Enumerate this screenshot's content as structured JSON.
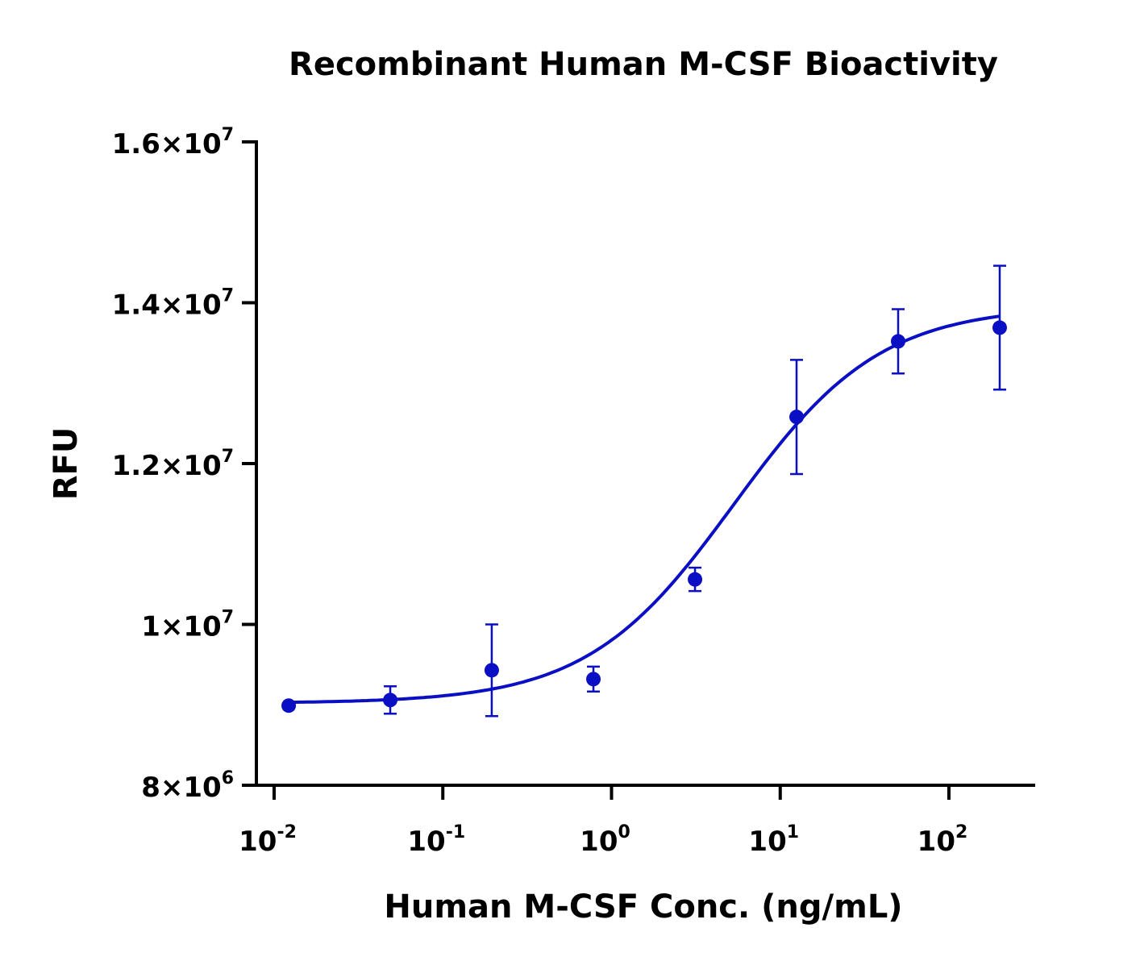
{
  "chart_data": {
    "type": "scatter",
    "title": "Recombinant Human M-CSF Bioactivity",
    "xlabel": "Human M-CSF Conc. (ng/mL)",
    "ylabel": "RFU",
    "x_scale": "log",
    "xlim": [
      0.0085,
      300
    ],
    "ylim": [
      8000000,
      16000000
    ],
    "x_ticks": [
      {
        "value": 0.01,
        "base": "10",
        "exp": "-2"
      },
      {
        "value": 0.1,
        "base": "10",
        "exp": "-1"
      },
      {
        "value": 1,
        "base": "10",
        "exp": "0"
      },
      {
        "value": 10,
        "base": "10",
        "exp": "1"
      },
      {
        "value": 100,
        "base": "10",
        "exp": "2"
      }
    ],
    "y_ticks": [
      {
        "value": 8000000,
        "mant": "8",
        "exp": "6"
      },
      {
        "value": 10000000,
        "mant": "1",
        "exp": "7"
      },
      {
        "value": 12000000,
        "mant": "1.2",
        "exp": "7"
      },
      {
        "value": 14000000,
        "mant": "1.4",
        "exp": "7"
      },
      {
        "value": 16000000,
        "mant": "1.6",
        "exp": "7"
      }
    ],
    "grid": false,
    "color": "#0a0fc4",
    "series": [
      {
        "x": [
          0.0122,
          0.0488,
          0.195,
          0.781,
          3.125,
          12.5,
          50,
          200
        ],
        "y": [
          8990000,
          9060000,
          9430000,
          9320000,
          10560000,
          12580000,
          13520000,
          13690000
        ],
        "error": [
          0,
          170000,
          570000,
          155000,
          145000,
          710000,
          400000,
          770000
        ]
      }
    ],
    "fit": {
      "model": "4PL",
      "bottom": 9020000,
      "top": 13960000,
      "ec50": 5.3,
      "hill": 1.0
    }
  }
}
